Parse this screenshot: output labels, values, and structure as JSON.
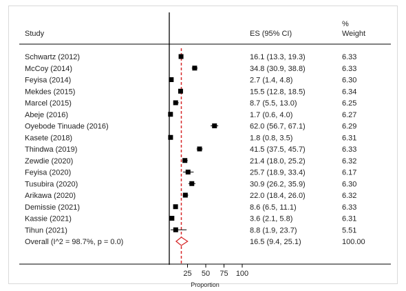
{
  "chart_data": {
    "type": "forest",
    "headers": {
      "study": "Study",
      "es": "ES (95% CI)",
      "weight_line1": "%",
      "weight_line2": "Weight"
    },
    "studies": [
      {
        "name": "Schwartz (2012)",
        "es": 16.1,
        "lo": 13.3,
        "hi": 19.3,
        "es_text": "16.1 (13.3, 19.3)",
        "weight": "6.33"
      },
      {
        "name": "McCoy (2014)",
        "es": 34.8,
        "lo": 30.9,
        "hi": 38.8,
        "es_text": "34.8 (30.9, 38.8)",
        "weight": "6.33"
      },
      {
        "name": "Feyisa (2014)",
        "es": 2.7,
        "lo": 1.4,
        "hi": 4.8,
        "es_text": "2.7 (1.4, 4.8)",
        "weight": "6.30"
      },
      {
        "name": "Mekdes (2015)",
        "es": 15.5,
        "lo": 12.8,
        "hi": 18.5,
        "es_text": "15.5 (12.8, 18.5)",
        "weight": "6.34"
      },
      {
        "name": "Marcel (2015)",
        "es": 8.7,
        "lo": 5.5,
        "hi": 13.0,
        "es_text": "8.7 (5.5, 13.0)",
        "weight": "6.25"
      },
      {
        "name": "Abeje (2016)",
        "es": 1.7,
        "lo": 0.6,
        "hi": 4.0,
        "es_text": "1.7 (0.6, 4.0)",
        "weight": "6.27"
      },
      {
        "name": "Oyebode Tinuade (2016)",
        "es": 62.0,
        "lo": 56.7,
        "hi": 67.1,
        "es_text": "62.0 (56.7, 67.1)",
        "weight": "6.29"
      },
      {
        "name": "Kasete (2018)",
        "es": 1.8,
        "lo": 0.8,
        "hi": 3.5,
        "es_text": "1.8 (0.8, 3.5)",
        "weight": "6.31"
      },
      {
        "name": "Thindwa (2019)",
        "es": 41.5,
        "lo": 37.5,
        "hi": 45.7,
        "es_text": "41.5 (37.5, 45.7)",
        "weight": "6.33"
      },
      {
        "name": "Zewdie (2020)",
        "es": 21.4,
        "lo": 18.0,
        "hi": 25.2,
        "es_text": "21.4 (18.0, 25.2)",
        "weight": "6.32"
      },
      {
        "name": "Feyisa (2020)",
        "es": 25.7,
        "lo": 18.9,
        "hi": 33.4,
        "es_text": "25.7 (18.9, 33.4)",
        "weight": "6.17"
      },
      {
        "name": "Tusubira (2020)",
        "es": 30.9,
        "lo": 26.2,
        "hi": 35.9,
        "es_text": "30.9 (26.2, 35.9)",
        "weight": "6.30"
      },
      {
        "name": "Arikawa (2020)",
        "es": 22.0,
        "lo": 18.4,
        "hi": 26.0,
        "es_text": "22.0 (18.4, 26.0)",
        "weight": "6.32"
      },
      {
        "name": "Demissie (2021)",
        "es": 8.6,
        "lo": 6.5,
        "hi": 11.1,
        "es_text": "8.6 (6.5, 11.1)",
        "weight": "6.33"
      },
      {
        "name": "Kassie (2021)",
        "es": 3.6,
        "lo": 2.1,
        "hi": 5.8,
        "es_text": "3.6 (2.1, 5.8)",
        "weight": "6.31"
      },
      {
        "name": "Tihun (2021)",
        "es": 8.8,
        "lo": 1.9,
        "hi": 23.7,
        "es_text": "8.8 (1.9, 23.7)",
        "weight": "5.51"
      }
    ],
    "overall": {
      "name": "Overall  (I^2 = 98.7%, p = 0.0)",
      "es": 16.5,
      "lo": 9.4,
      "hi": 25.1,
      "es_text": "16.5 (9.4, 25.1)",
      "weight": "100.00"
    },
    "xaxis": {
      "label": "Proportion",
      "ticks": [
        25,
        50,
        75,
        100
      ],
      "range": [
        0,
        100
      ]
    },
    "colors": {
      "overall_line": "#d62728",
      "diamond": "#d62728",
      "marker": "#000000",
      "axis": "#000000"
    }
  }
}
